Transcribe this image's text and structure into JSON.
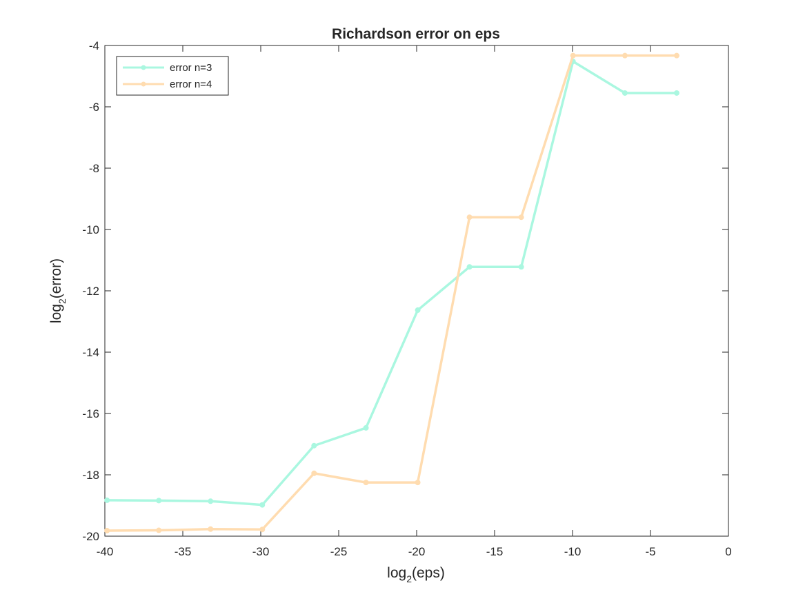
{
  "chart_data": {
    "type": "line",
    "title": "Richardson error on eps",
    "xlabel": {
      "base": "log",
      "sub": "2",
      "rest": "(eps)"
    },
    "ylabel": {
      "base": "log",
      "sub": "2",
      "rest": "(error)"
    },
    "xlim": [
      -40,
      0
    ],
    "ylim": [
      -20,
      -4
    ],
    "xticks": [
      -40,
      -35,
      -30,
      -25,
      -20,
      -15,
      -10,
      -5,
      0
    ],
    "yticks": [
      -20,
      -18,
      -16,
      -14,
      -12,
      -10,
      -8,
      -6,
      -4
    ],
    "grid": false,
    "legend_position": "top-left",
    "x": [
      -39.86,
      -36.54,
      -33.22,
      -29.9,
      -26.58,
      -23.25,
      -19.93,
      -16.61,
      -13.29,
      -9.97,
      -6.64,
      -3.32
    ],
    "series": [
      {
        "name": "error n=3",
        "color": "#aaf7e0",
        "values": [
          -18.83,
          -18.84,
          -18.86,
          -18.98,
          -17.05,
          -16.47,
          -12.63,
          -11.22,
          -11.22,
          -4.52,
          -5.55,
          -5.55
        ]
      },
      {
        "name": "error n=4",
        "color": "#ffdcb0",
        "values": [
          -19.82,
          -19.81,
          -19.77,
          -19.78,
          -17.95,
          -18.25,
          -18.25,
          -9.6,
          -9.6,
          -4.33,
          -4.33,
          -4.33
        ]
      }
    ]
  }
}
